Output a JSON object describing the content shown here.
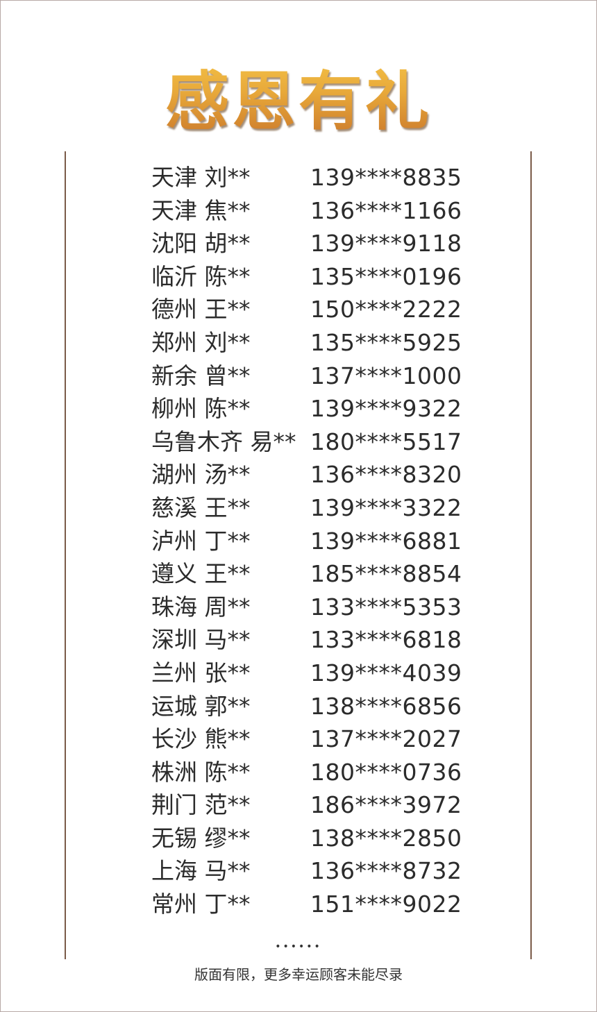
{
  "title": "感恩有礼",
  "title_colors": [
    "#f6c64a",
    "#c9762a"
  ],
  "winners": [
    {
      "name": "天津 刘**",
      "phone": "139****8835"
    },
    {
      "name": "天津 焦**",
      "phone": "136****1166"
    },
    {
      "name": "沈阳 胡**",
      "phone": "139****9118"
    },
    {
      "name": "临沂 陈**",
      "phone": "135****0196"
    },
    {
      "name": "德州 王**",
      "phone": "150****2222"
    },
    {
      "name": "郑州 刘**",
      "phone": "135****5925"
    },
    {
      "name": "新余 曾**",
      "phone": "137****1000"
    },
    {
      "name": "柳州 陈**",
      "phone": "139****9322"
    },
    {
      "name": "乌鲁木齐 易**",
      "phone": "180****5517"
    },
    {
      "name": "湖州 汤**",
      "phone": "136****8320"
    },
    {
      "name": "慈溪 王**",
      "phone": "139****3322"
    },
    {
      "name": "泸州 丁**",
      "phone": "139****6881"
    },
    {
      "name": "遵义 王**",
      "phone": "185****8854"
    },
    {
      "name": "珠海 周**",
      "phone": "133****5353"
    },
    {
      "name": "深圳 马**",
      "phone": "133****6818"
    },
    {
      "name": "兰州 张**",
      "phone": "139****4039"
    },
    {
      "name": "运城 郭**",
      "phone": "138****6856"
    },
    {
      "name": "长沙 熊**",
      "phone": "137****2027"
    },
    {
      "name": "株洲 陈**",
      "phone": "180****0736"
    },
    {
      "name": "荆门 范**",
      "phone": "186****3972"
    },
    {
      "name": "无锡 缪**",
      "phone": "138****2850"
    },
    {
      "name": "上海 马**",
      "phone": "136****8732"
    },
    {
      "name": "常州 丁**",
      "phone": "151****9022"
    }
  ],
  "ellipsis": "••••••",
  "footer_note": "版面有限，更多幸运顾客未能尽录"
}
